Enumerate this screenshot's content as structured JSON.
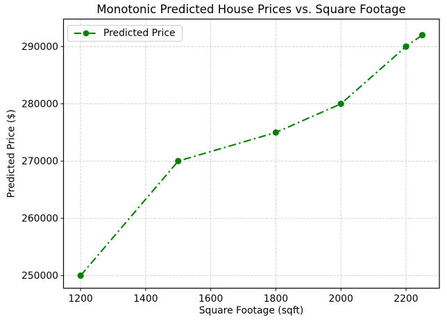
{
  "chart_data": {
    "type": "line",
    "title": "Monotonic Predicted House Prices vs. Square Footage",
    "xlabel": "Square Footage (sqft)",
    "ylabel": "Predicted Price ($)",
    "series": [
      {
        "name": "Predicted Price",
        "color": "#008000",
        "linestyle": "dash-dot",
        "marker": "circle",
        "x": [
          1200,
          1500,
          1800,
          2000,
          2200,
          2250
        ],
        "y": [
          250000,
          270000,
          275000,
          280000,
          290000,
          292000
        ]
      }
    ],
    "xticks": [
      1200,
      1400,
      1600,
      1800,
      2000,
      2200
    ],
    "yticks": [
      250000,
      260000,
      270000,
      280000,
      290000
    ],
    "xlim": [
      1147.5,
      2302.5
    ],
    "ylim": [
      247800,
      294800
    ],
    "grid": true,
    "grid_color": "#cdcdcd",
    "background_color": "#ffffff",
    "legend": {
      "position": "upper-left"
    }
  }
}
